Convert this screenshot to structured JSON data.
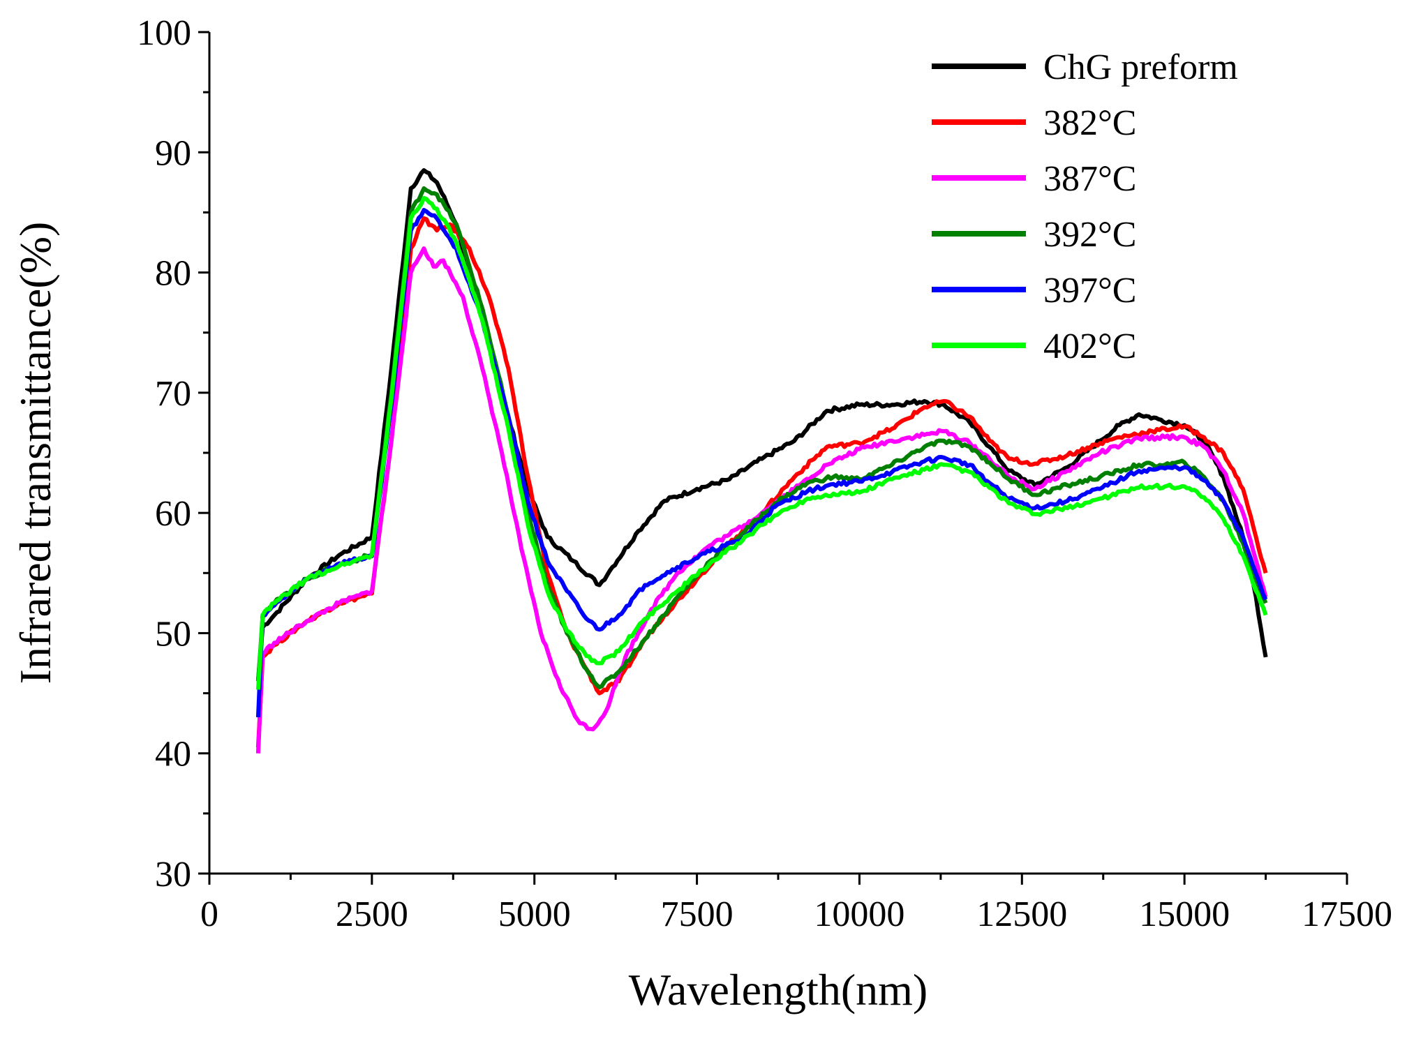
{
  "chart_data": {
    "type": "line",
    "title": "",
    "xlabel": "Wavelength(nm)",
    "ylabel": "Infrared transmittance(%)",
    "xlim": [
      0,
      17500
    ],
    "ylim": [
      30,
      100
    ],
    "xticks": [
      0,
      2500,
      5000,
      7500,
      10000,
      12500,
      15000,
      17500
    ],
    "yticks": [
      30,
      40,
      50,
      60,
      70,
      80,
      90,
      100
    ],
    "xtick_labels": [
      "0",
      "2500",
      "5000",
      "7500",
      "10000",
      "12500",
      "15000",
      "17500"
    ],
    "ytick_labels": [
      "30",
      "40",
      "50",
      "60",
      "70",
      "80",
      "90",
      "100"
    ],
    "grid": false,
    "legend_position": "top-right",
    "series": [
      {
        "name": "ChG preform",
        "color": "#000000",
        "points": [
          [
            750,
            46
          ],
          [
            820,
            50.5
          ],
          [
            1000,
            51.5
          ],
          [
            1500,
            54.5
          ],
          [
            2000,
            56.5
          ],
          [
            2500,
            58
          ],
          [
            2800,
            72
          ],
          [
            3100,
            87
          ],
          [
            3300,
            88.5
          ],
          [
            3500,
            87.5
          ],
          [
            3800,
            84
          ],
          [
            4200,
            76
          ],
          [
            4600,
            68
          ],
          [
            4900,
            62
          ],
          [
            5200,
            58
          ],
          [
            5600,
            56
          ],
          [
            6000,
            54
          ],
          [
            6200,
            55.5
          ],
          [
            6600,
            58.5
          ],
          [
            7000,
            61
          ],
          [
            7500,
            62
          ],
          [
            8000,
            62.8
          ],
          [
            8500,
            64.5
          ],
          [
            9000,
            66
          ],
          [
            9500,
            68.5
          ],
          [
            10000,
            69
          ],
          [
            10500,
            69
          ],
          [
            11000,
            69.3
          ],
          [
            11300,
            69
          ],
          [
            11700,
            67.5
          ],
          [
            12000,
            65.5
          ],
          [
            12300,
            63.5
          ],
          [
            12700,
            62.3
          ],
          [
            13200,
            63.8
          ],
          [
            13700,
            66
          ],
          [
            14000,
            67.3
          ],
          [
            14300,
            68.2
          ],
          [
            14600,
            67.8
          ],
          [
            15000,
            67.3
          ],
          [
            15300,
            66
          ],
          [
            15600,
            63
          ],
          [
            15900,
            58
          ],
          [
            16100,
            53
          ],
          [
            16250,
            48
          ]
        ]
      },
      {
        "name": "382°C",
        "color": "#ff0000",
        "points": [
          [
            750,
            40.5
          ],
          [
            820,
            48
          ],
          [
            1000,
            49
          ],
          [
            1500,
            51
          ],
          [
            2000,
            52.5
          ],
          [
            2500,
            53.3
          ],
          [
            2800,
            66
          ],
          [
            3100,
            82
          ],
          [
            3300,
            84.5
          ],
          [
            3500,
            83.5
          ],
          [
            3700,
            84
          ],
          [
            4000,
            82
          ],
          [
            4300,
            78
          ],
          [
            4600,
            72
          ],
          [
            4900,
            63
          ],
          [
            5200,
            55
          ],
          [
            5500,
            50
          ],
          [
            5800,
            47
          ],
          [
            6000,
            45
          ],
          [
            6300,
            46
          ],
          [
            6700,
            49.5
          ],
          [
            7000,
            51.5
          ],
          [
            7500,
            54.5
          ],
          [
            8000,
            57.5
          ],
          [
            8500,
            60
          ],
          [
            9000,
            63
          ],
          [
            9500,
            65.5
          ],
          [
            10000,
            65.8
          ],
          [
            10500,
            67
          ],
          [
            11000,
            68.8
          ],
          [
            11300,
            69.3
          ],
          [
            11700,
            68
          ],
          [
            12000,
            66
          ],
          [
            12300,
            64.5
          ],
          [
            12700,
            64.1
          ],
          [
            13200,
            64.8
          ],
          [
            13700,
            65.8
          ],
          [
            14000,
            66.3
          ],
          [
            14500,
            66.8
          ],
          [
            15000,
            67.2
          ],
          [
            15300,
            66.3
          ],
          [
            15600,
            65
          ],
          [
            15900,
            62
          ],
          [
            16100,
            58
          ],
          [
            16250,
            55
          ]
        ]
      },
      {
        "name": "387°C",
        "color": "#ff00ff",
        "points": [
          [
            750,
            40
          ],
          [
            820,
            48.3
          ],
          [
            1000,
            49.2
          ],
          [
            1500,
            51
          ],
          [
            2000,
            52.5
          ],
          [
            2500,
            53.5
          ],
          [
            2800,
            66
          ],
          [
            3100,
            80
          ],
          [
            3300,
            82
          ],
          [
            3450,
            80.5
          ],
          [
            3600,
            81
          ],
          [
            3900,
            78
          ],
          [
            4200,
            72
          ],
          [
            4500,
            65
          ],
          [
            4800,
            57
          ],
          [
            5100,
            50
          ],
          [
            5400,
            45.5
          ],
          [
            5700,
            42.5
          ],
          [
            5900,
            42
          ],
          [
            6100,
            43.5
          ],
          [
            6400,
            48
          ],
          [
            6800,
            52
          ],
          [
            7200,
            55
          ],
          [
            7700,
            57.3
          ],
          [
            8000,
            58.2
          ],
          [
            8500,
            60
          ],
          [
            9000,
            62
          ],
          [
            9500,
            64
          ],
          [
            10000,
            65.3
          ],
          [
            10500,
            66
          ],
          [
            11000,
            66.5
          ],
          [
            11300,
            66.8
          ],
          [
            11700,
            65.8
          ],
          [
            12000,
            64.5
          ],
          [
            12300,
            63
          ],
          [
            12700,
            62
          ],
          [
            13200,
            63.5
          ],
          [
            13700,
            65
          ],
          [
            14300,
            66.2
          ],
          [
            14700,
            66.3
          ],
          [
            15000,
            66.3
          ],
          [
            15300,
            65.5
          ],
          [
            15600,
            63.5
          ],
          [
            15900,
            60
          ],
          [
            16250,
            53
          ]
        ]
      },
      {
        "name": "392°C",
        "color": "#008000",
        "points": [
          [
            750,
            46
          ],
          [
            820,
            51.5
          ],
          [
            1000,
            52.5
          ],
          [
            1500,
            54.5
          ],
          [
            2000,
            55.7
          ],
          [
            2500,
            56.5
          ],
          [
            2800,
            70
          ],
          [
            3100,
            85
          ],
          [
            3300,
            87
          ],
          [
            3500,
            86.5
          ],
          [
            3800,
            84
          ],
          [
            4200,
            77
          ],
          [
            4600,
            68
          ],
          [
            4900,
            60
          ],
          [
            5200,
            54
          ],
          [
            5500,
            50
          ],
          [
            5800,
            47
          ],
          [
            6000,
            45.5
          ],
          [
            6300,
            46.8
          ],
          [
            6700,
            49.5
          ],
          [
            7200,
            53
          ],
          [
            7700,
            56
          ],
          [
            8200,
            58.3
          ],
          [
            8700,
            60.8
          ],
          [
            9200,
            62.5
          ],
          [
            9600,
            63
          ],
          [
            10000,
            62.8
          ],
          [
            10500,
            64
          ],
          [
            11000,
            65.5
          ],
          [
            11300,
            66
          ],
          [
            11700,
            65.5
          ],
          [
            12000,
            64.2
          ],
          [
            12300,
            62.8
          ],
          [
            12700,
            61.5
          ],
          [
            13200,
            62.3
          ],
          [
            13700,
            63
          ],
          [
            14300,
            64
          ],
          [
            14700,
            64
          ],
          [
            15000,
            64.2
          ],
          [
            15300,
            63
          ],
          [
            15600,
            61
          ],
          [
            15900,
            57.5
          ],
          [
            16250,
            52.5
          ]
        ]
      },
      {
        "name": "397°C",
        "color": "#0000ff",
        "points": [
          [
            750,
            43
          ],
          [
            820,
            51.5
          ],
          [
            1000,
            52.3
          ],
          [
            1500,
            54.5
          ],
          [
            2000,
            55.8
          ],
          [
            2500,
            56.4
          ],
          [
            2800,
            69
          ],
          [
            3100,
            83.5
          ],
          [
            3300,
            85.2
          ],
          [
            3500,
            84.5
          ],
          [
            3800,
            82
          ],
          [
            4200,
            76
          ],
          [
            4600,
            68
          ],
          [
            4900,
            61
          ],
          [
            5200,
            56
          ],
          [
            5500,
            53.5
          ],
          [
            5800,
            51.2
          ],
          [
            6000,
            50.3
          ],
          [
            6300,
            51.5
          ],
          [
            6700,
            54
          ],
          [
            7200,
            55.5
          ],
          [
            7700,
            56.8
          ],
          [
            8200,
            57.8
          ],
          [
            8700,
            60.5
          ],
          [
            9200,
            61.8
          ],
          [
            9600,
            62.4
          ],
          [
            10000,
            62.6
          ],
          [
            10500,
            63.4
          ],
          [
            11000,
            64.3
          ],
          [
            11300,
            64.6
          ],
          [
            11700,
            64
          ],
          [
            12000,
            62.5
          ],
          [
            12300,
            61.2
          ],
          [
            12700,
            60.4
          ],
          [
            13200,
            61
          ],
          [
            13700,
            62
          ],
          [
            14300,
            63.5
          ],
          [
            14700,
            63.7
          ],
          [
            15000,
            63.8
          ],
          [
            15300,
            62.7
          ],
          [
            15600,
            61
          ],
          [
            15900,
            58
          ],
          [
            16250,
            52.8
          ]
        ]
      },
      {
        "name": "402°C",
        "color": "#00ff00",
        "points": [
          [
            750,
            45.3
          ],
          [
            820,
            51.5
          ],
          [
            1000,
            52.5
          ],
          [
            1500,
            54.5
          ],
          [
            2000,
            55.6
          ],
          [
            2500,
            56.5
          ],
          [
            2800,
            69.5
          ],
          [
            3100,
            84.5
          ],
          [
            3300,
            86.2
          ],
          [
            3500,
            85.3
          ],
          [
            3800,
            82.5
          ],
          [
            4200,
            76
          ],
          [
            4600,
            67
          ],
          [
            4900,
            59
          ],
          [
            5200,
            53.5
          ],
          [
            5500,
            50.2
          ],
          [
            5800,
            48.1
          ],
          [
            6000,
            47.5
          ],
          [
            6300,
            48.5
          ],
          [
            6700,
            51.2
          ],
          [
            7200,
            53.5
          ],
          [
            7700,
            55.8
          ],
          [
            8200,
            57.7
          ],
          [
            8700,
            59.8
          ],
          [
            9200,
            61.2
          ],
          [
            9600,
            61.6
          ],
          [
            10000,
            61.7
          ],
          [
            10500,
            62.8
          ],
          [
            11000,
            63.6
          ],
          [
            11300,
            64
          ],
          [
            11700,
            63.4
          ],
          [
            12000,
            62.1
          ],
          [
            12300,
            60.8
          ],
          [
            12700,
            59.9
          ],
          [
            13200,
            60.4
          ],
          [
            13700,
            61.2
          ],
          [
            14300,
            62.1
          ],
          [
            14700,
            62.2
          ],
          [
            15000,
            62.2
          ],
          [
            15300,
            61.3
          ],
          [
            15600,
            59.5
          ],
          [
            15900,
            56.5
          ],
          [
            16250,
            51.5
          ]
        ]
      }
    ]
  }
}
